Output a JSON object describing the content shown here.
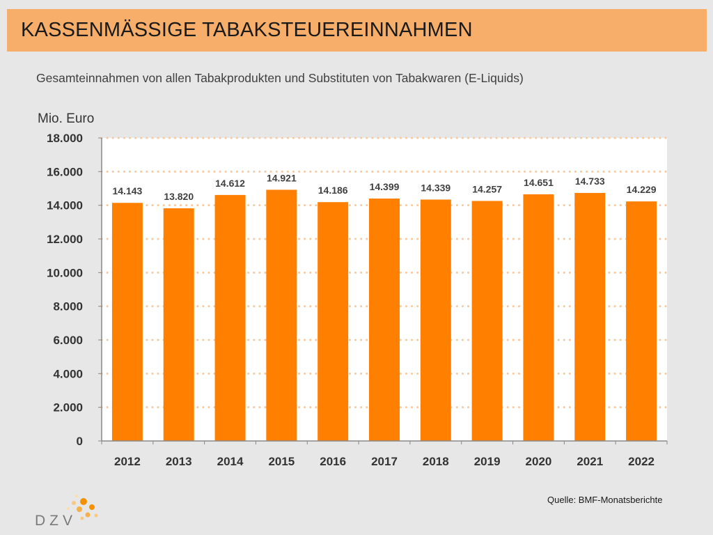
{
  "header": {
    "title": "KASSENMÄSSIGE TABAKSTEUEREINNAHMEN",
    "subtitle": "Gesamteinnahmen von allen Tabakprodukten und Substituten von Tabakwaren (E-Liquids)"
  },
  "footer": {
    "source": "Quelle: BMF-Monatsberichte",
    "logo_text": "DZV"
  },
  "colors": {
    "bar": "#ff8000",
    "grid": "#f6c9a0",
    "plot_bg": "#ffffff"
  },
  "chart_data": {
    "type": "bar",
    "title": "KASSENMÄSSIGE TABAKSTEUEREINNAHMEN",
    "subtitle": "Gesamteinnahmen von allen Tabakprodukten und Substituten von Tabakwaren (E-Liquids)",
    "ylabel": "Mio. Euro",
    "xlabel": "",
    "categories": [
      "2012",
      "2013",
      "2014",
      "2015",
      "2016",
      "2017",
      "2018",
      "2019",
      "2020",
      "2021",
      "2022"
    ],
    "values": [
      14143,
      13820,
      14612,
      14921,
      14186,
      14399,
      14339,
      14257,
      14651,
      14733,
      14229
    ],
    "value_labels": [
      "14.143",
      "13.820",
      "14.612",
      "14.921",
      "14.186",
      "14.399",
      "14.339",
      "14.257",
      "14.651",
      "14.733",
      "14.229"
    ],
    "ylim": [
      0,
      18000
    ],
    "yticks": [
      0,
      2000,
      4000,
      6000,
      8000,
      10000,
      12000,
      14000,
      16000,
      18000
    ],
    "ytick_labels": [
      "0",
      "2.000",
      "4.000",
      "6.000",
      "8.000",
      "10.000",
      "12.000",
      "14.000",
      "16.000",
      "18.000"
    ],
    "grid": true,
    "legend": "none"
  }
}
